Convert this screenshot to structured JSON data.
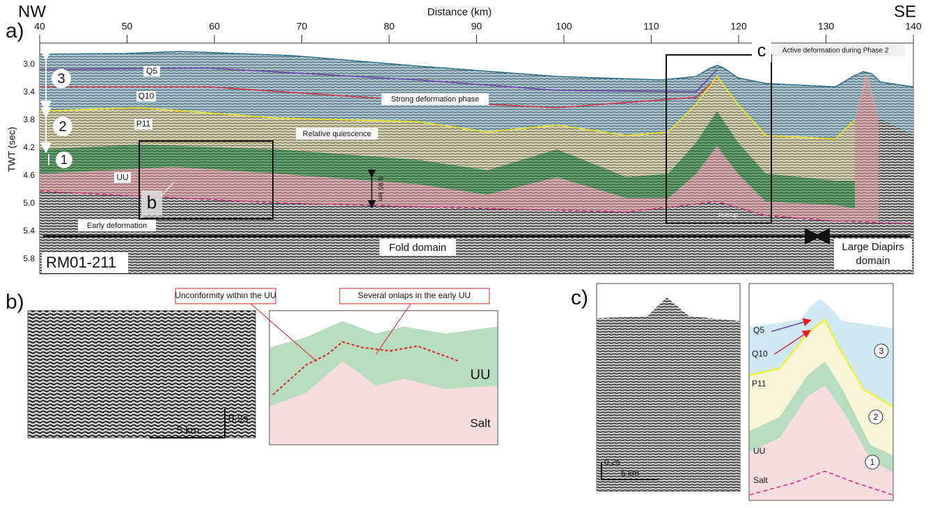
{
  "panel_a": {
    "label": "a)",
    "left_direction": "NW",
    "right_direction": "SE",
    "x_axis": {
      "title": "Distance (km)",
      "ticks": [
        40,
        50,
        60,
        70,
        80,
        90,
        100,
        110,
        120,
        130,
        140
      ]
    },
    "y_axis": {
      "title": "TWT (sec)",
      "ticks": [
        "3.0",
        "3.4",
        "3.8",
        "4.2",
        "4.6",
        "5.0",
        "5.4",
        "5.8"
      ]
    },
    "units": [
      "3",
      "2",
      "1"
    ],
    "horizons": [
      "Q5",
      "Q10",
      "P11",
      "UU"
    ],
    "annotations": {
      "strong": "Strong deformation phase",
      "quiescence": "Relative quiescence",
      "thickness": "0.95 km",
      "early": "Early deformation",
      "active": "Active deformation during Phase 2",
      "pullup": "Pull-up"
    },
    "boxes": [
      "b",
      "c"
    ],
    "fold_domain": "Fold domain",
    "diapirs_domain": [
      "Large Diapirs",
      "domain"
    ],
    "profile": "RM01-211"
  },
  "panel_b": {
    "label": "b)",
    "scale_x": "5 km",
    "scale_y": "0.2s",
    "callouts": [
      "Unconformity within the UU",
      "Several onlaps in the early UU"
    ],
    "units": [
      "UU",
      "Salt"
    ]
  },
  "panel_c": {
    "label": "c)",
    "scale_y": "0,2s",
    "scale_x": "5 km",
    "horizons": [
      "Q5",
      "Q10",
      "P11",
      "UU"
    ],
    "units": [
      "3",
      "2",
      "1"
    ],
    "salt": "Salt"
  }
}
